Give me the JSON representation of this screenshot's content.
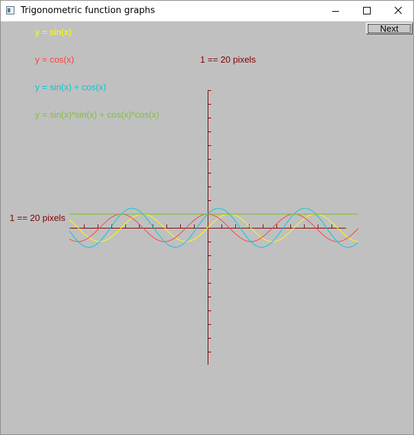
{
  "window": {
    "title": "Trigonometric function graphs",
    "icons": {
      "app": "app-window-icon",
      "minimize": "minimize-icon",
      "maximize": "maximize-icon",
      "close": "close-icon"
    }
  },
  "toolbar": {
    "next_label": "Next"
  },
  "legend": [
    {
      "label": "y = sin(x)",
      "color": "#ffff00"
    },
    {
      "label": "y = cos(x)",
      "color": "#ff4040"
    },
    {
      "label": "y = sin(x) + cos(x)",
      "color": "#00c8d8"
    },
    {
      "label": "y = sin(x)*sin(x) + cos(x)*cos(x)",
      "color": "#80c040"
    }
  ],
  "axes": {
    "y_scale_label": "1 == 20 pixels",
    "x_scale_label": "1 == 20 pixels",
    "axis_color": "#800000",
    "label_color": "#800000"
  },
  "colors": {
    "background": "#c0c0c0"
  }
}
